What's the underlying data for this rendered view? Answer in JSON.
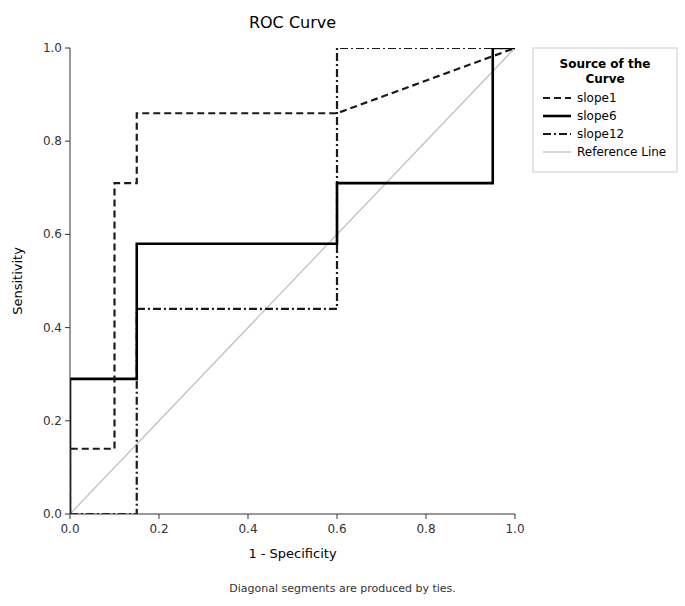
{
  "chart_data": {
    "type": "line",
    "title": "ROC Curve",
    "x_label": "1 - Specificity",
    "y_label": "Sensitivity",
    "annotations": [
      "Diagonal segments are produced by ties."
    ],
    "legend_title": "Source of the\nCurve",
    "legend": "right",
    "grid": false,
    "xlim": [
      0.0,
      1.0
    ],
    "ylim": [
      0.0,
      1.0
    ],
    "xticks": [
      {
        "value": 0.0,
        "label": "0.0"
      },
      0.2,
      0.4,
      0.6,
      0.8,
      {
        "value": 1.0,
        "label": "1.0"
      }
    ],
    "yticks": [
      {
        "value": 0.0,
        "label": "0.0"
      },
      0.2,
      0.4,
      0.6,
      0.8,
      {
        "value": 1.0,
        "label": "1.0"
      }
    ],
    "series": [
      {
        "name": "slope1",
        "color": "#1a1a1a",
        "line_style": "dashed",
        "x": [
          0.0,
          0.0,
          0.1,
          0.1,
          0.15,
          0.15,
          0.6,
          0.6,
          1.0
        ],
        "values": [
          0.0,
          0.14,
          0.14,
          0.71,
          0.71,
          0.86,
          0.86,
          0.86,
          1.0
        ]
      },
      {
        "name": "slope6",
        "color": "#000000",
        "line_style": "solid",
        "x": [
          0.0,
          0.0,
          0.15,
          0.15,
          0.6,
          0.6,
          0.65,
          0.65,
          0.95,
          0.95,
          1.0
        ],
        "values": [
          0.0,
          0.29,
          0.29,
          0.58,
          0.58,
          0.71,
          0.71,
          0.71,
          0.71,
          1.0,
          1.0
        ]
      },
      {
        "name": "slope12",
        "color": "#1a1a1a",
        "line_style": "dashdot",
        "x": [
          0.0,
          0.15,
          0.15,
          0.6,
          0.6,
          0.65,
          0.65,
          1.0
        ],
        "values": [
          0.0,
          0.0,
          0.44,
          0.44,
          1.0,
          1.0,
          1.0,
          1.0
        ]
      },
      {
        "name": "Reference Line",
        "color": "#c0c0c0",
        "line_style": "solid",
        "x": [
          0,
          1
        ],
        "values": [
          0,
          1
        ]
      }
    ]
  }
}
